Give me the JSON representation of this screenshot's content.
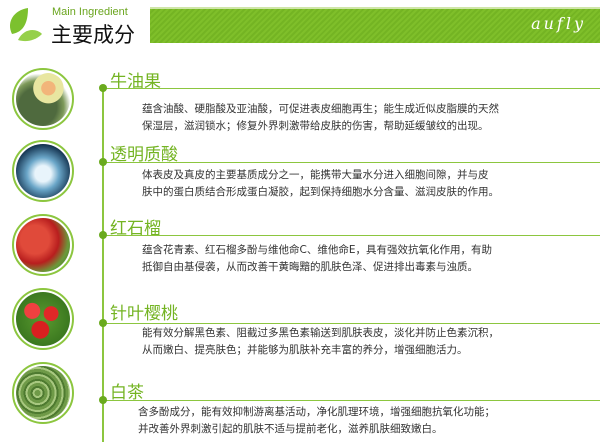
{
  "header": {
    "subtitle_en": "Main Ingredient",
    "title": "主要成分",
    "brand": "aufly",
    "accent": "#74b423"
  },
  "items": [
    {
      "name": "牛油果",
      "icon": "avocado-image",
      "lines": [
        "蕴含油酸、硬脂酸及亚油酸，可促进表皮细胞再生；能生成近似皮脂膜的天然",
        "保湿层，滋润锁水；修复外界刺激带给皮肤的伤害，帮助延缓皱纹的出现。"
      ]
    },
    {
      "name": "透明质酸",
      "icon": "water-splash-image",
      "lines": [
        "体表皮及真皮的主要基质成分之一，能携带大量水分进入细胞间隙，并与皮",
        "肤中的蛋白质结合形成蛋白凝胶，起到保持细胞水分含量、滋润皮肤的作用。"
      ]
    },
    {
      "name": "红石榴",
      "icon": "pomegranate-image",
      "lines": [
        "蕴含花青素、红石榴多酚与维他命C、维他命E，具有强效抗氧化作用，有助",
        "抵御自由基侵袭，从而改善干黄晦黯的肌肤色泽、促进排出毒素与浊质。"
      ]
    },
    {
      "name": "针叶樱桃",
      "icon": "acerola-cherry-image",
      "lines": [
        "能有效分解黑色素、阻截过多黑色素输送到肌肤表皮，淡化并防止色素沉积，",
        "从而嫩白、提亮肤色；并能够为肌肤补充丰富的养分，增强细胞活力。"
      ]
    },
    {
      "name": "白茶",
      "icon": "white-tea-image",
      "lines": [
        "含多酚成分，能有效抑制游离基活动，净化肌理环境，增强细胞抗氧化功能；",
        "并改善外界刺激引起的肌肤不适与提前老化，滋养肌肤细致嫩白。"
      ]
    }
  ]
}
